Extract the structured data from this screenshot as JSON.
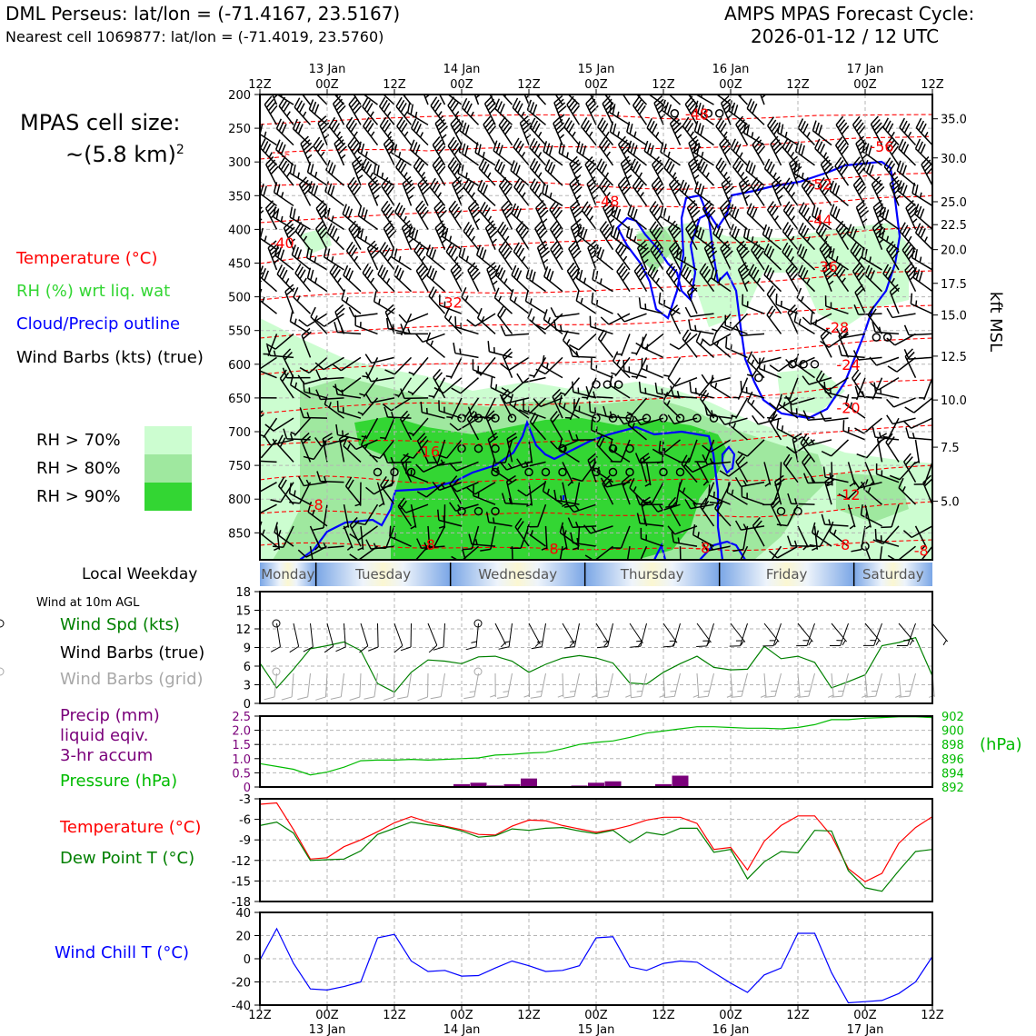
{
  "header": {
    "location_title": "DML Perseus: lat/lon = (-71.4167, 23.5167)",
    "nearest_cell": "Nearest cell 1069877: lat/lon = (-71.4019, 23.5760)",
    "cycle_title": "AMPS MPAS Forecast Cycle:",
    "cycle_date": "2026-01-12 / 12 UTC"
  },
  "cell_size": {
    "line1": "MPAS cell size:",
    "line2": "~(5.8 km)",
    "sup": "2"
  },
  "legend": {
    "temperature": "Temperature (°C)",
    "rh": "RH (%) wrt liq. wat",
    "cloud": "Cloud/Precip outline",
    "wind": "Wind Barbs (kts) (true)",
    "rh70": "RH > 70%",
    "rh80": "RH > 80%",
    "rh90": "RH > 90%"
  },
  "colors": {
    "rh70": "#ccfdd0",
    "rh80": "#9fe89f",
    "rh90": "#33d633",
    "temp": "#ff0000",
    "cloud": "#0000ff",
    "pressure": "#00bb00",
    "precip": "#7a007a",
    "dew": "#007f00",
    "wind_spd": "#008000",
    "wind_chill": "#0000ff",
    "grid_barb": "#a8a8a8"
  },
  "time_axis": {
    "top_days": [
      "13 Jan",
      "14 Jan",
      "15 Jan",
      "16 Jan",
      "17 Jan"
    ],
    "labels": [
      "12Z",
      "00Z",
      "12Z",
      "00Z",
      "12Z",
      "00Z",
      "12Z",
      "00Z",
      "12Z",
      "00Z",
      "12Z"
    ],
    "bottom_days": [
      "13 Jan",
      "14 Jan",
      "15 Jan",
      "16 Jan",
      "17 Jan"
    ]
  },
  "weekday_bar": {
    "label": "Local Weekday",
    "days": [
      "Monday",
      "Tuesday",
      "Wednesday",
      "Thursday",
      "Friday",
      "Saturday"
    ]
  },
  "wind10m": {
    "title": "Wind at 10m AGL",
    "spd_label": "Wind Spd (kts)",
    "barbs_true": "Wind Barbs (true)",
    "barbs_grid": "Wind Barbs (grid)"
  },
  "precip_panel": {
    "line1": "Precip (mm)",
    "line2": "liquid eqiv.",
    "line3": "3-hr accum",
    "pressure_label": "Pressure (hPa)",
    "hpa_unit": "(hPa)"
  },
  "temp_panel": {
    "temp_label": "Temperature (°C)",
    "dew_label": "Dew Point T (°C)"
  },
  "chill_panel": {
    "label": "Wind Chill T (°C)"
  },
  "chart_data": [
    {
      "type": "heatmap",
      "name": "time-height cross section",
      "ylabel": "pressure (hPa)",
      "right_label": "kft MSL",
      "y_ticks": [
        200,
        250,
        300,
        350,
        400,
        450,
        500,
        550,
        600,
        650,
        700,
        750,
        800,
        850
      ],
      "ylim": [
        200,
        890
      ],
      "kft_ticks": [
        "35.0",
        "30.0",
        "25.0",
        "22.5",
        "20.0",
        "17.5",
        "15.0",
        "12.5",
        "10.0",
        "7.5",
        "5.0"
      ],
      "kft_levels": [
        35.0,
        30.0,
        25.0,
        22.5,
        20.0,
        17.5,
        15.0,
        12.5,
        10.0,
        7.5,
        5.0
      ],
      "xlim_hours": [
        0,
        120
      ],
      "temperature_contour_labels": [
        {
          "t": 78,
          "p": 228,
          "text": "-48"
        },
        {
          "t": 111,
          "p": 277,
          "text": "-56"
        },
        {
          "t": 100,
          "p": 333,
          "text": "-52"
        },
        {
          "t": 62,
          "p": 358,
          "text": "-48"
        },
        {
          "t": 100,
          "p": 386,
          "text": "-44"
        },
        {
          "t": 4,
          "p": 420,
          "text": "-40"
        },
        {
          "t": 101,
          "p": 455,
          "text": "-36"
        },
        {
          "t": 34,
          "p": 508,
          "text": "-32"
        },
        {
          "t": 103,
          "p": 545,
          "text": "-28"
        },
        {
          "t": 105,
          "p": 600,
          "text": "-24"
        },
        {
          "t": 105,
          "p": 664,
          "text": "-20"
        },
        {
          "t": 30,
          "p": 729,
          "text": "-16"
        },
        {
          "t": 105,
          "p": 793,
          "text": "-12"
        },
        {
          "t": 10,
          "p": 808,
          "text": "-8"
        },
        {
          "t": 30,
          "p": 867,
          "text": "-8"
        },
        {
          "t": 52,
          "p": 873,
          "text": "-8"
        },
        {
          "t": 79,
          "p": 872,
          "text": "-8"
        },
        {
          "t": 104,
          "p": 867,
          "text": "-8"
        },
        {
          "t": 118,
          "p": 876,
          "text": "-8"
        }
      ]
    },
    {
      "type": "line",
      "name": "wind speed 10m",
      "x_hours": [
        0,
        3,
        6,
        9,
        12,
        15,
        18,
        21,
        24,
        27,
        30,
        33,
        36,
        39,
        42,
        45,
        48,
        51,
        54,
        57,
        60,
        63,
        66,
        69,
        72,
        75,
        78,
        81,
        84,
        87,
        90,
        93,
        96,
        99,
        102,
        105,
        108,
        111,
        114,
        117,
        120
      ],
      "series": [
        {
          "name": "Wind Spd (kts)",
          "values": [
            6.5,
            2.5,
            5.5,
            8.8,
            9.3,
            9.9,
            8.5,
            3.2,
            1.8,
            5,
            7,
            6.8,
            6.4,
            7.5,
            7.6,
            6.8,
            5,
            6.3,
            7.3,
            7.7,
            7.3,
            6.5,
            3.3,
            3.1,
            5,
            6.4,
            7.6,
            5.8,
            5.4,
            5.5,
            9.2,
            7.2,
            7.6,
            6.6,
            2.5,
            3.5,
            4.6,
            9.3,
            9.8,
            10.6,
            4.4
          ]
        }
      ],
      "ylim": [
        0,
        18
      ],
      "y_ticks": [
        0,
        3,
        6,
        9,
        12,
        15,
        18
      ]
    },
    {
      "type": "bar",
      "name": "3-hr precip",
      "x_hours": [
        36,
        39,
        42,
        45,
        48,
        57,
        60,
        63,
        72,
        75
      ],
      "values": [
        0.1,
        0.15,
        0.05,
        0.1,
        0.3,
        0.05,
        0.15,
        0.2,
        0.1,
        0.4
      ],
      "ylim": [
        0,
        2.5
      ],
      "y_ticks": [
        "0",
        "0.5",
        "1.0",
        "1.5",
        "2.0",
        "2.5"
      ]
    },
    {
      "type": "line",
      "name": "pressure",
      "x_hours": [
        0,
        3,
        6,
        9,
        12,
        15,
        18,
        21,
        24,
        27,
        30,
        33,
        36,
        39,
        42,
        45,
        48,
        51,
        54,
        57,
        60,
        63,
        66,
        69,
        72,
        75,
        78,
        81,
        84,
        87,
        90,
        93,
        96,
        99,
        102,
        105,
        108,
        111,
        114,
        117,
        120
      ],
      "series": [
        {
          "name": "Pressure (hPa)",
          "values": [
            895.3,
            894.9,
            894.5,
            893.7,
            894.1,
            894.8,
            895.7,
            895.8,
            895.8,
            895.9,
            895.8,
            895.9,
            896.0,
            896.1,
            896.5,
            896.6,
            896.8,
            896.9,
            897.4,
            898.0,
            898.3,
            898.5,
            899.0,
            899.6,
            899.9,
            900.2,
            900.5,
            900.5,
            900.4,
            900.3,
            900.3,
            900.2,
            900.4,
            900.8,
            901.5,
            901.5,
            901.7,
            901.8,
            901.9,
            901.9,
            901.8
          ]
        }
      ],
      "ylim": [
        892,
        902
      ],
      "y_ticks": [
        892,
        894,
        896,
        898,
        900,
        902
      ]
    },
    {
      "type": "line",
      "name": "temperature and dew point",
      "x_hours": [
        0,
        3,
        6,
        9,
        12,
        15,
        18,
        21,
        24,
        27,
        30,
        33,
        36,
        39,
        42,
        45,
        48,
        51,
        54,
        57,
        60,
        63,
        66,
        69,
        72,
        75,
        78,
        81,
        84,
        87,
        90,
        93,
        96,
        99,
        102,
        105,
        108,
        111,
        114,
        117,
        120
      ],
      "series": [
        {
          "name": "Temperature (°C)",
          "values": [
            -3.8,
            -3.6,
            -7.5,
            -11.8,
            -11.6,
            -10.0,
            -9.0,
            -7.8,
            -6.5,
            -5.6,
            -6.4,
            -7.0,
            -7.5,
            -8.2,
            -8.3,
            -7.0,
            -6.1,
            -6.2,
            -6.9,
            -7.4,
            -7.9,
            -7.5,
            -6.9,
            -6.1,
            -5.7,
            -5.7,
            -6.6,
            -10.4,
            -10.1,
            -13.4,
            -9.2,
            -6.9,
            -5.5,
            -5.5,
            -8.4,
            -13.2,
            -15.1,
            -13.9,
            -9.5,
            -7.2,
            -5.6
          ]
        },
        {
          "name": "Dew Point T (°C)",
          "values": [
            -6.9,
            -6.4,
            -8.0,
            -12.0,
            -11.9,
            -11.8,
            -10.6,
            -8.2,
            -7.3,
            -6.4,
            -6.8,
            -7.1,
            -7.7,
            -8.6,
            -8.4,
            -7.4,
            -7.6,
            -7.3,
            -7.2,
            -7.7,
            -8.1,
            -7.6,
            -9.4,
            -7.9,
            -8.3,
            -7.3,
            -7.3,
            -10.8,
            -10.4,
            -14.7,
            -12.2,
            -10.7,
            -10.9,
            -7.6,
            -7.7,
            -13.5,
            -16.0,
            -16.5,
            -13.5,
            -10.7,
            -10.4
          ]
        }
      ],
      "ylim": [
        -18,
        -3
      ],
      "y_ticks": [
        -3,
        -6,
        -9,
        -12,
        -15,
        -18
      ]
    },
    {
      "type": "line",
      "name": "wind chill",
      "x_hours": [
        0,
        3,
        6,
        9,
        12,
        15,
        18,
        21,
        24,
        27,
        30,
        33,
        36,
        39,
        42,
        45,
        48,
        51,
        54,
        57,
        60,
        63,
        66,
        69,
        72,
        75,
        78,
        81,
        84,
        87,
        90,
        93,
        96,
        99,
        102,
        105,
        108,
        111,
        114,
        117,
        120
      ],
      "series": [
        {
          "name": "Wind Chill T (°C)",
          "values": [
            -1,
            26,
            -4,
            -26,
            -27,
            -24,
            -20,
            18,
            21,
            -2,
            -11,
            -10,
            -15,
            -14.5,
            -8,
            -2,
            -6,
            -11,
            -10,
            -6,
            18,
            19,
            -7,
            -10,
            -4,
            -2,
            -3,
            -12,
            -21,
            -29,
            -14,
            -8,
            22,
            22,
            -12,
            -38,
            -37,
            -36,
            -30,
            -20,
            2
          ]
        }
      ],
      "ylim": [
        -40,
        40
      ],
      "y_ticks": [
        40,
        20,
        0,
        -20,
        -40
      ]
    }
  ]
}
